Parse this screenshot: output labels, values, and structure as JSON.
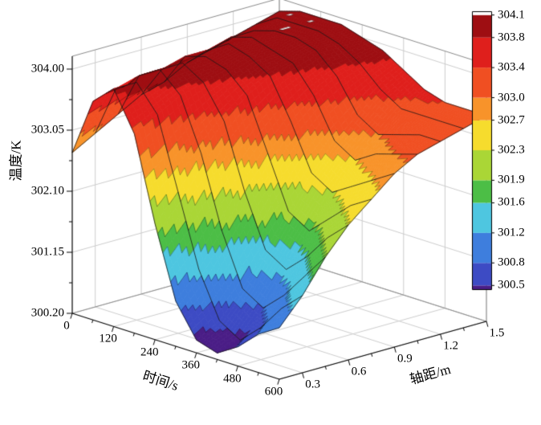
{
  "chart_data": {
    "type": "surface3d",
    "title": "",
    "axes": {
      "x": {
        "label": "时间/s",
        "ticks": [
          "0",
          "120",
          "240",
          "360",
          "480",
          "600"
        ],
        "tick_values": [
          0,
          120,
          240,
          360,
          480,
          600
        ],
        "range": [
          0,
          600
        ]
      },
      "y": {
        "label": "轴距/m",
        "ticks": [
          "0.3",
          "0.6",
          "0.9",
          "1.2",
          "1.5"
        ],
        "tick_values": [
          0.3,
          0.6,
          0.9,
          1.2,
          1.5
        ],
        "range": [
          0.15,
          1.5
        ]
      },
      "z": {
        "label": "温度/K",
        "ticks": [
          "300.20",
          "301.15",
          "302.10",
          "303.05",
          "304.00"
        ],
        "tick_values": [
          300.2,
          301.15,
          302.1,
          303.05,
          304.0
        ],
        "range": [
          300.2,
          304.2
        ]
      }
    },
    "colorbar": {
      "tick_labels": [
        "304.1",
        "303.8",
        "303.4",
        "303.0",
        "302.7",
        "302.3",
        "301.9",
        "301.6",
        "301.2",
        "300.8",
        "300.5"
      ],
      "tick_values": [
        304.1,
        303.8,
        303.4,
        303.0,
        302.7,
        302.3,
        301.9,
        301.6,
        301.2,
        300.8,
        300.5
      ],
      "value_range": [
        300.45,
        304.15
      ],
      "over_color": "#ffffff"
    },
    "bands": {
      "boundaries": [
        300.5,
        300.8,
        301.2,
        301.6,
        301.9,
        302.3,
        302.7,
        303.0,
        303.4,
        303.8,
        304.1
      ],
      "colors": [
        "#4A1D86",
        "#3D4BC4",
        "#3E7EDD",
        "#4EC6E0",
        "#4CBE46",
        "#AAD636",
        "#F6DC2D",
        "#F8932A",
        "#F04F22",
        "#DF1F1C",
        "#9E0E12",
        "#FFFFFF"
      ]
    },
    "surface": {
      "x": [
        0,
        60,
        120,
        180,
        240,
        300,
        360,
        420,
        480,
        540,
        600
      ],
      "y": [
        0.15,
        0.3,
        0.45,
        0.6,
        0.75,
        0.9,
        1.05,
        1.2,
        1.35,
        1.5
      ],
      "z": [
        [
          302.7,
          303.6,
          303.9,
          303.3,
          302.0,
          300.9,
          300.4,
          300.3,
          300.5,
          300.8,
          301.0
        ],
        [
          302.9,
          303.7,
          303.9,
          303.5,
          302.4,
          301.3,
          300.6,
          300.4,
          300.7,
          301.1,
          301.4
        ],
        [
          303.1,
          303.8,
          304.0,
          303.7,
          302.9,
          301.8,
          301.0,
          300.8,
          301.1,
          301.5,
          301.9
        ],
        [
          303.3,
          303.8,
          304.0,
          303.8,
          303.3,
          302.3,
          301.5,
          301.3,
          301.6,
          302.0,
          302.3
        ],
        [
          303.4,
          303.9,
          304.0,
          303.9,
          303.6,
          302.8,
          302.0,
          301.8,
          302.1,
          302.4,
          302.6
        ],
        [
          303.6,
          303.9,
          304.1,
          304.0,
          303.8,
          303.2,
          302.5,
          302.3,
          302.5,
          302.7,
          302.9
        ],
        [
          303.7,
          304.0,
          304.1,
          304.0,
          303.9,
          303.5,
          302.9,
          302.7,
          302.9,
          303.0,
          303.1
        ],
        [
          303.8,
          304.0,
          304.1,
          304.1,
          304.0,
          303.7,
          303.2,
          303.0,
          303.1,
          303.2,
          303.2
        ],
        [
          303.9,
          304.1,
          304.1,
          304.1,
          304.0,
          303.8,
          303.5,
          303.3,
          303.3,
          303.3,
          303.3
        ],
        [
          304.0,
          304.1,
          304.1,
          304.1,
          304.0,
          303.9,
          303.7,
          303.5,
          303.4,
          303.4,
          303.4
        ]
      ]
    },
    "style": {
      "mesh_line_color": "#151515",
      "contour_line_color": "rgba(0,0,0,0.5)",
      "grid_color": "#cccccc",
      "frame_color": "#8a8a8a",
      "axis_color": "#000000",
      "background": "#ffffff"
    }
  }
}
